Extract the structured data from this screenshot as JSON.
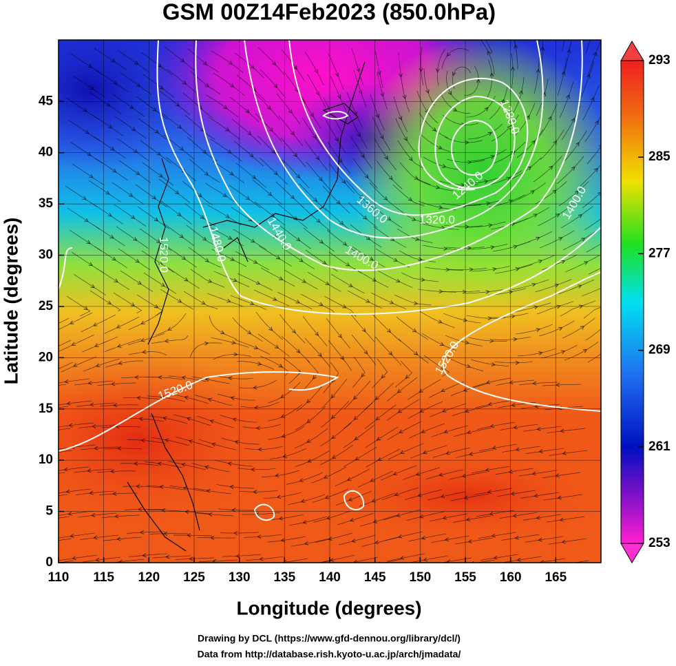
{
  "title": "GSM 00Z14Feb2023 (850.0hPa)",
  "map": {
    "xlabel": "Longitude (degrees)",
    "ylabel": "Latitude  (degrees)",
    "xlim": [
      110,
      170
    ],
    "ylim": [
      0,
      51
    ],
    "xticks": [
      110,
      115,
      120,
      125,
      130,
      135,
      140,
      145,
      150,
      155,
      160,
      165
    ],
    "yticks": [
      0,
      5,
      10,
      15,
      20,
      25,
      30,
      35,
      40,
      45
    ],
    "contour_labels": [
      "1520.0",
      "1520.0",
      "1520.0",
      "1480.0",
      "1440.0",
      "1400.0",
      "1360.0",
      "1320.0",
      "1400.0",
      "1280.0",
      "1240.0"
    ]
  },
  "colorbar": {
    "lim": [
      253,
      293
    ],
    "ticks": [
      253,
      261,
      269,
      277,
      285,
      293
    ]
  },
  "credits": [
    "Drawing by DCL (https://www.gfd-dennou.org/library/dcl/)",
    "Data from http://database.rish.kyoto-u.ac.jp/arch/jmadata/"
  ]
}
